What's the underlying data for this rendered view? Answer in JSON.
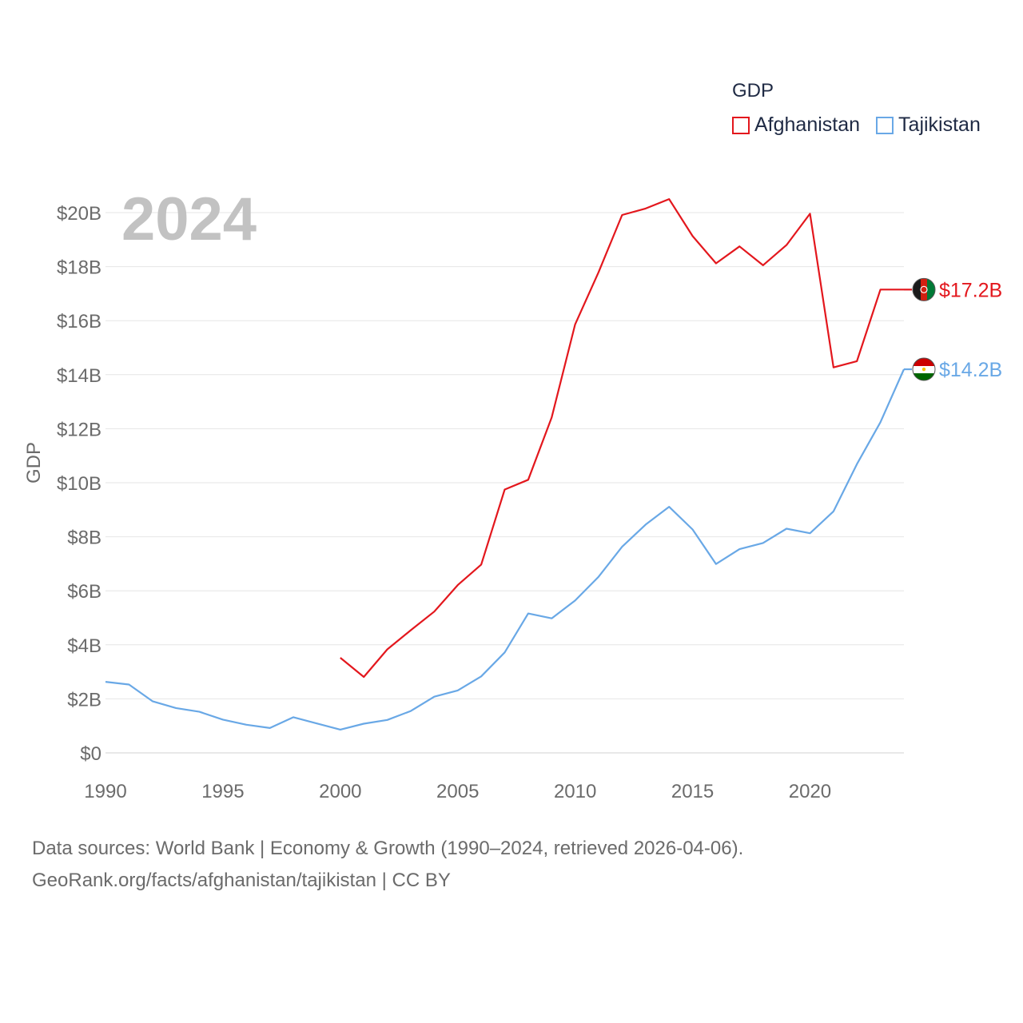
{
  "chart_data": {
    "type": "line",
    "title": "GDP",
    "year_label": "2024",
    "ylabel": "GDP",
    "xlabel": "",
    "xlim": [
      1990,
      2024
    ],
    "ylim": [
      0,
      21
    ],
    "y_ticks": [
      {
        "value": 0,
        "label": "$0"
      },
      {
        "value": 2,
        "label": "$2B"
      },
      {
        "value": 4,
        "label": "$4B"
      },
      {
        "value": 6,
        "label": "$6B"
      },
      {
        "value": 8,
        "label": "$8B"
      },
      {
        "value": 10,
        "label": "$10B"
      },
      {
        "value": 12,
        "label": "$12B"
      },
      {
        "value": 14,
        "label": "$14B"
      },
      {
        "value": 16,
        "label": "$16B"
      },
      {
        "value": 18,
        "label": "$18B"
      },
      {
        "value": 20,
        "label": "$20B"
      }
    ],
    "x_ticks": [
      {
        "value": 1990,
        "label": "1990"
      },
      {
        "value": 1995,
        "label": "1995"
      },
      {
        "value": 2000,
        "label": "2000"
      },
      {
        "value": 2005,
        "label": "2005"
      },
      {
        "value": 2010,
        "label": "2010"
      },
      {
        "value": 2015,
        "label": "2015"
      },
      {
        "value": 2020,
        "label": "2020"
      }
    ],
    "legend_position": "top-right",
    "grid": true,
    "series": [
      {
        "name": "Afghanistan",
        "color": "#e3171d",
        "end_label": "$17.2B",
        "flag": "afghanistan-flag",
        "x": [
          2000,
          2001,
          2002,
          2003,
          2004,
          2005,
          2006,
          2007,
          2008,
          2009,
          2010,
          2011,
          2012,
          2013,
          2014,
          2015,
          2016,
          2017,
          2018,
          2019,
          2020,
          2021,
          2022,
          2023,
          2024
        ],
        "values": [
          3.52,
          2.81,
          3.83,
          4.54,
          5.23,
          6.21,
          6.97,
          9.75,
          10.11,
          12.42,
          15.86,
          17.8,
          19.91,
          20.15,
          20.5,
          19.13,
          18.12,
          18.75,
          18.05,
          18.8,
          19.96,
          14.27,
          14.5,
          17.15,
          17.15
        ]
      },
      {
        "name": "Tajikistan",
        "color": "#69a8e6",
        "end_label": "$14.2B",
        "flag": "tajikistan-flag",
        "x": [
          1990,
          1991,
          1992,
          1993,
          1994,
          1995,
          1996,
          1997,
          1998,
          1999,
          2000,
          2001,
          2002,
          2003,
          2004,
          2005,
          2006,
          2007,
          2008,
          2009,
          2010,
          2011,
          2012,
          2013,
          2014,
          2015,
          2016,
          2017,
          2018,
          2019,
          2020,
          2021,
          2022,
          2023,
          2024
        ],
        "values": [
          2.63,
          2.53,
          1.91,
          1.66,
          1.52,
          1.23,
          1.04,
          0.92,
          1.32,
          1.09,
          0.86,
          1.08,
          1.22,
          1.55,
          2.08,
          2.31,
          2.83,
          3.72,
          5.16,
          4.98,
          5.64,
          6.52,
          7.63,
          8.45,
          9.11,
          8.27,
          6.99,
          7.54,
          7.77,
          8.3,
          8.13,
          8.94,
          10.69,
          12.24,
          14.2
        ]
      }
    ]
  },
  "footer": {
    "line1": "Data sources: World Bank | Economy & Growth (1990–2024, retrieved 2026-04-06).",
    "line2": "GeoRank.org/facts/afghanistan/tajikistan | CC BY"
  }
}
